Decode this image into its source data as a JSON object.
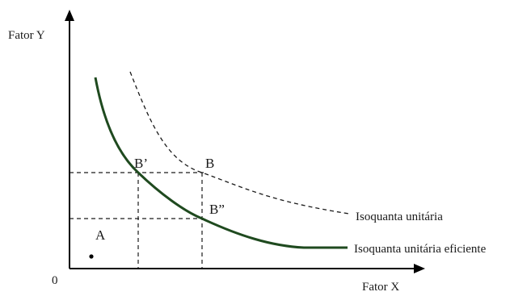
{
  "axes": {
    "y_label": "Fator Y",
    "x_label": "Fator X",
    "origin_label": "0"
  },
  "points": {
    "a": "A",
    "b": "B",
    "b_prime": "B’",
    "b_double_prime": "B”"
  },
  "curves": {
    "unit_isoquant": "Isoquanta unitária",
    "efficient_unit_isoquant": "Isoquanta unitária eficiente"
  },
  "colors": {
    "efficient_curve": "#1f4a1f",
    "unit_curve": "#1a1a1a",
    "axes": "#000000",
    "guide_lines": "#1a1a1a"
  }
}
